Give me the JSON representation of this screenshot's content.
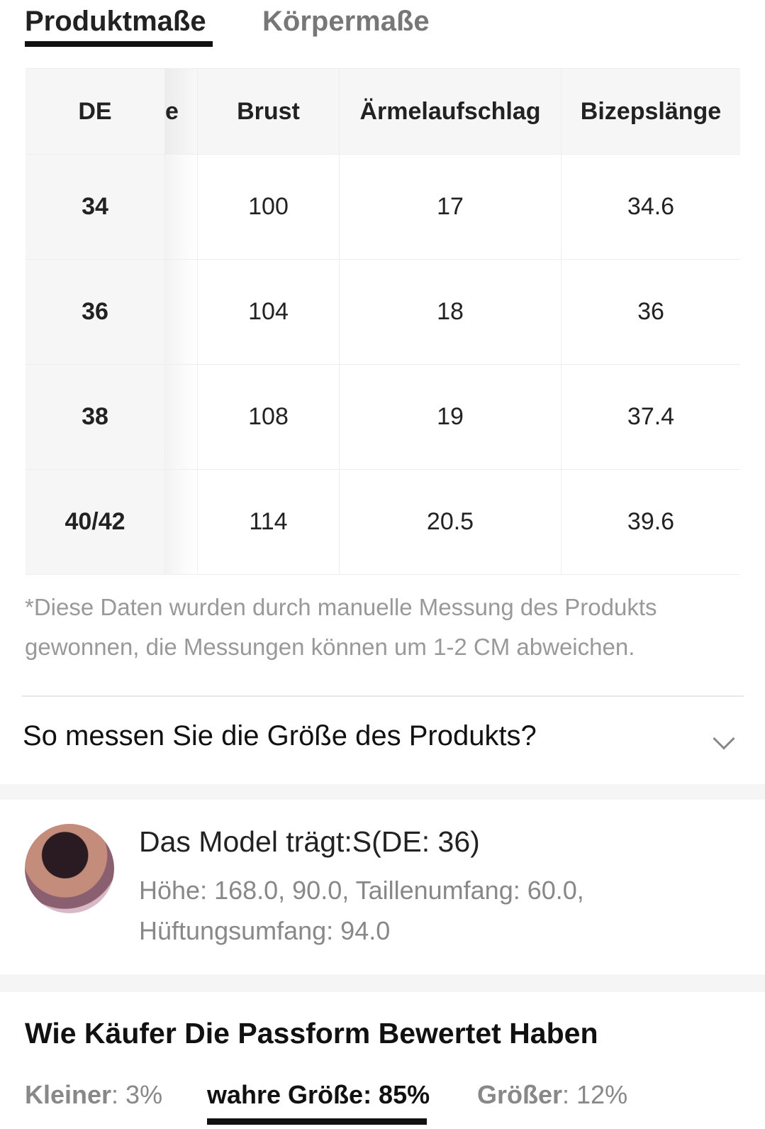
{
  "tabs": [
    {
      "label": "Produktmaße",
      "active": true
    },
    {
      "label": "Körpermaße",
      "active": false
    }
  ],
  "table": {
    "headers": [
      "DE",
      "e",
      "Brust",
      "Ärmelaufschlag",
      "Bizepslänge"
    ],
    "rows": [
      [
        "34",
        "",
        "100",
        "17",
        "34.6"
      ],
      [
        "36",
        "",
        "104",
        "18",
        "36"
      ],
      [
        "38",
        "",
        "108",
        "19",
        "37.4"
      ],
      [
        "40/42",
        "",
        "114",
        "20.5",
        "39.6"
      ]
    ]
  },
  "note": "*Diese Daten wurden durch manuelle Messung des Produkts gewonnen, die Messungen können um 1-2 CM abweichen.",
  "howto": {
    "label": "So messen Sie die Größe des Produkts?",
    "icon": "chevron-down-icon"
  },
  "model": {
    "title": "Das Model trägt:S(DE: 36)",
    "info_line1": "Höhe: 168.0,   90.0,  Taillenumfang: 60.0,",
    "info_line2": "Hüftungsumfang: 94.0"
  },
  "fit": {
    "title": "Wie Käufer Die Passform Bewertet Haben",
    "options": [
      {
        "label": "Kleiner",
        "value": ": 3%"
      },
      {
        "label": "wahre Größe",
        "value": ": 85%",
        "active": true
      },
      {
        "label": "Größer",
        "value": ": 12%"
      }
    ]
  }
}
